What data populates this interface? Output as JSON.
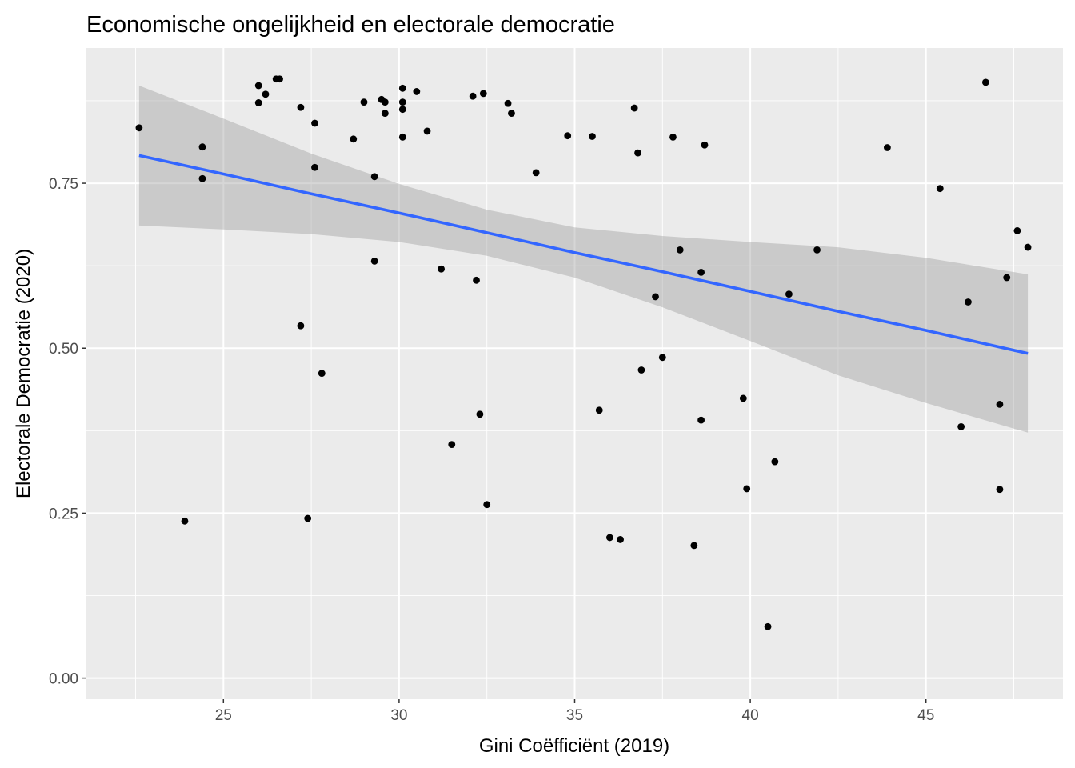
{
  "chart_data": {
    "type": "scatter",
    "title": "Economische ongelijkheid en electorale democratie",
    "xlabel": "Gini Coëfficiënt (2019)",
    "ylabel": "Electorale Democratie (2020)",
    "xlim": [
      21.1,
      48.9
    ],
    "ylim": [
      -0.032,
      0.955
    ],
    "x_ticks": [
      25,
      30,
      35,
      40,
      45
    ],
    "x_tick_labels": [
      "25",
      "30",
      "35",
      "40",
      "45"
    ],
    "y_ticks": [
      0.0,
      0.25,
      0.5,
      0.75
    ],
    "y_tick_labels": [
      "0.00",
      "0.25",
      "0.50",
      "0.75"
    ],
    "grid": true,
    "colors": {
      "panel": "#ebebeb",
      "grid": "#ffffff",
      "point": "#000000",
      "trend": "#3366ff",
      "ribbon": "#999999"
    },
    "points": [
      {
        "x": 22.6,
        "y": 0.834
      },
      {
        "x": 23.9,
        "y": 0.238
      },
      {
        "x": 24.4,
        "y": 0.805
      },
      {
        "x": 24.4,
        "y": 0.757
      },
      {
        "x": 26.0,
        "y": 0.898
      },
      {
        "x": 26.0,
        "y": 0.872
      },
      {
        "x": 26.2,
        "y": 0.885
      },
      {
        "x": 26.5,
        "y": 0.908
      },
      {
        "x": 26.6,
        "y": 0.908
      },
      {
        "x": 27.2,
        "y": 0.865
      },
      {
        "x": 27.2,
        "y": 0.534
      },
      {
        "x": 27.4,
        "y": 0.242
      },
      {
        "x": 27.6,
        "y": 0.841
      },
      {
        "x": 27.6,
        "y": 0.774
      },
      {
        "x": 27.8,
        "y": 0.462
      },
      {
        "x": 28.7,
        "y": 0.817
      },
      {
        "x": 29.0,
        "y": 0.873
      },
      {
        "x": 29.3,
        "y": 0.76
      },
      {
        "x": 29.3,
        "y": 0.632
      },
      {
        "x": 29.5,
        "y": 0.877
      },
      {
        "x": 29.6,
        "y": 0.873
      },
      {
        "x": 29.6,
        "y": 0.856
      },
      {
        "x": 30.1,
        "y": 0.894
      },
      {
        "x": 30.1,
        "y": 0.873
      },
      {
        "x": 30.1,
        "y": 0.862
      },
      {
        "x": 30.1,
        "y": 0.82
      },
      {
        "x": 30.5,
        "y": 0.889
      },
      {
        "x": 30.8,
        "y": 0.829
      },
      {
        "x": 31.2,
        "y": 0.62
      },
      {
        "x": 31.5,
        "y": 0.354
      },
      {
        "x": 32.1,
        "y": 0.882
      },
      {
        "x": 32.2,
        "y": 0.603
      },
      {
        "x": 32.3,
        "y": 0.4
      },
      {
        "x": 32.4,
        "y": 0.886
      },
      {
        "x": 32.5,
        "y": 0.263
      },
      {
        "x": 33.1,
        "y": 0.871
      },
      {
        "x": 33.2,
        "y": 0.856
      },
      {
        "x": 33.9,
        "y": 0.766
      },
      {
        "x": 34.8,
        "y": 0.822
      },
      {
        "x": 35.5,
        "y": 0.821
      },
      {
        "x": 35.7,
        "y": 0.406
      },
      {
        "x": 36.0,
        "y": 0.213
      },
      {
        "x": 36.3,
        "y": 0.21
      },
      {
        "x": 36.7,
        "y": 0.864
      },
      {
        "x": 36.8,
        "y": 0.796
      },
      {
        "x": 36.9,
        "y": 0.467
      },
      {
        "x": 37.3,
        "y": 0.578
      },
      {
        "x": 37.5,
        "y": 0.486
      },
      {
        "x": 37.8,
        "y": 0.82
      },
      {
        "x": 38.0,
        "y": 0.649
      },
      {
        "x": 38.4,
        "y": 0.201
      },
      {
        "x": 38.6,
        "y": 0.615
      },
      {
        "x": 38.6,
        "y": 0.391
      },
      {
        "x": 38.7,
        "y": 0.808
      },
      {
        "x": 39.8,
        "y": 0.424
      },
      {
        "x": 39.9,
        "y": 0.287
      },
      {
        "x": 40.5,
        "y": 0.078
      },
      {
        "x": 40.7,
        "y": 0.328
      },
      {
        "x": 41.1,
        "y": 0.582
      },
      {
        "x": 41.9,
        "y": 0.649
      },
      {
        "x": 43.9,
        "y": 0.804
      },
      {
        "x": 45.4,
        "y": 0.742
      },
      {
        "x": 46.0,
        "y": 0.381
      },
      {
        "x": 46.2,
        "y": 0.57
      },
      {
        "x": 46.7,
        "y": 0.903
      },
      {
        "x": 47.1,
        "y": 0.415
      },
      {
        "x": 47.1,
        "y": 0.286
      },
      {
        "x": 47.3,
        "y": 0.607
      },
      {
        "x": 47.6,
        "y": 0.678
      },
      {
        "x": 47.9,
        "y": 0.653
      }
    ],
    "trend": {
      "x": [
        22.6,
        25,
        27.5,
        30,
        32.5,
        35,
        37.5,
        40,
        42.5,
        45,
        47.9
      ],
      "y": [
        0.792,
        0.764,
        0.734,
        0.705,
        0.675,
        0.645,
        0.616,
        0.586,
        0.556,
        0.527,
        0.492
      ],
      "lower": [
        0.686,
        0.68,
        0.673,
        0.661,
        0.64,
        0.607,
        0.562,
        0.511,
        0.459,
        0.417,
        0.372
      ],
      "upper": [
        0.898,
        0.848,
        0.795,
        0.749,
        0.71,
        0.683,
        0.67,
        0.661,
        0.653,
        0.637,
        0.612
      ]
    }
  }
}
